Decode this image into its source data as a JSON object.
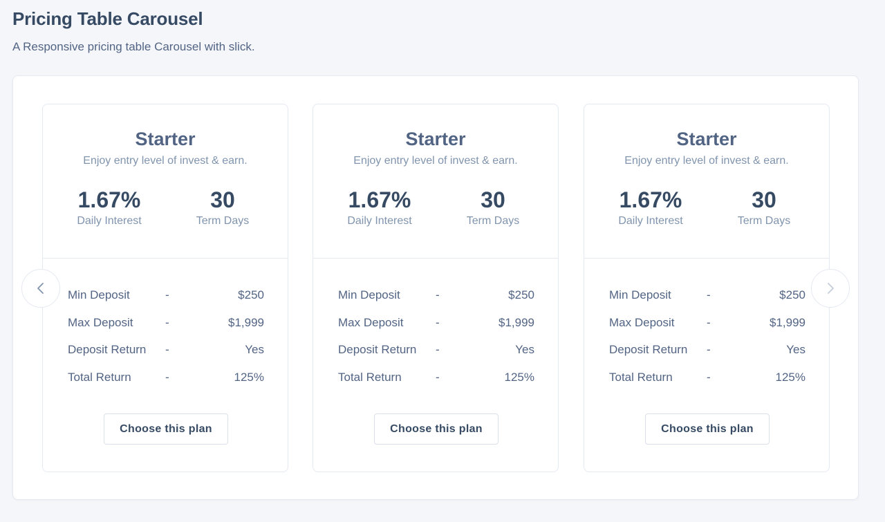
{
  "header": {
    "title": "Pricing Table Carousel",
    "subtitle": "A Responsive pricing table Carousel with slick."
  },
  "carousel": {
    "plans": [
      {
        "name": "Starter",
        "description": "Enjoy entry level of invest & earn.",
        "stats": [
          {
            "value": "1.67%",
            "label": "Daily Interest"
          },
          {
            "value": "30",
            "label": "Term Days"
          }
        ],
        "details": [
          {
            "label": "Min Deposit",
            "separator": "-",
            "value": "$250"
          },
          {
            "label": "Max Deposit",
            "separator": "-",
            "value": "$1,999"
          },
          {
            "label": "Deposit Return",
            "separator": "-",
            "value": "Yes"
          },
          {
            "label": "Total Return",
            "separator": "-",
            "value": "125%"
          }
        ],
        "button_label": "Choose this plan"
      },
      {
        "name": "Starter",
        "description": "Enjoy entry level of invest & earn.",
        "stats": [
          {
            "value": "1.67%",
            "label": "Daily Interest"
          },
          {
            "value": "30",
            "label": "Term Days"
          }
        ],
        "details": [
          {
            "label": "Min Deposit",
            "separator": "-",
            "value": "$250"
          },
          {
            "label": "Max Deposit",
            "separator": "-",
            "value": "$1,999"
          },
          {
            "label": "Deposit Return",
            "separator": "-",
            "value": "Yes"
          },
          {
            "label": "Total Return",
            "separator": "-",
            "value": "125%"
          }
        ],
        "button_label": "Choose this plan"
      },
      {
        "name": "Starter",
        "description": "Enjoy entry level of invest & earn.",
        "stats": [
          {
            "value": "1.67%",
            "label": "Daily Interest"
          },
          {
            "value": "30",
            "label": "Term Days"
          }
        ],
        "details": [
          {
            "label": "Min Deposit",
            "separator": "-",
            "value": "$250"
          },
          {
            "label": "Max Deposit",
            "separator": "-",
            "value": "$1,999"
          },
          {
            "label": "Deposit Return",
            "separator": "-",
            "value": "Yes"
          },
          {
            "label": "Total Return",
            "separator": "-",
            "value": "125%"
          }
        ],
        "button_label": "Choose this plan"
      }
    ],
    "prev_icon": "chevron-left-icon",
    "next_icon": "chevron-right-icon"
  },
  "colors": {
    "page_background": "#f5f6fa",
    "heading": "#364a63",
    "muted": "#8094ae",
    "border": "#e5e9f2"
  }
}
